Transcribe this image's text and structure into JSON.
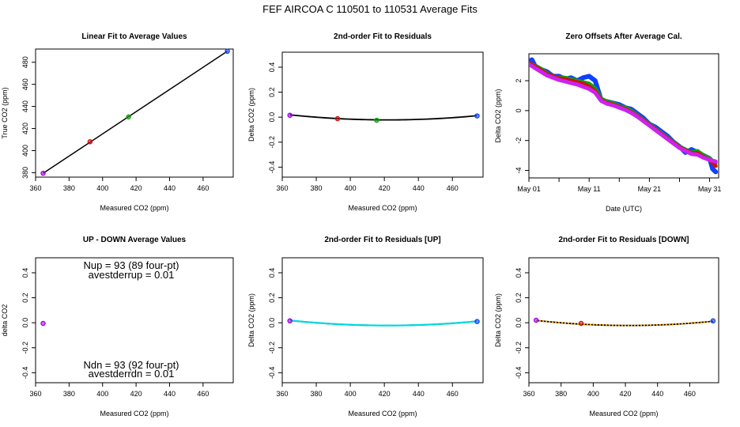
{
  "figure": {
    "title": "FEF   AIRCOA C   110501 to 110531   Average Fits"
  },
  "colors": {
    "axis": "#000000",
    "fit_line": "#000000",
    "purple": "#a000e0",
    "red": "#d01010",
    "green": "#10a010",
    "blue": "#1040ff",
    "magenta": "#cc22ee",
    "cyan": "#00d8e0",
    "orange": "#f0a000"
  },
  "chart_data": [
    {
      "id": "linear-fit",
      "type": "scatter",
      "title": "Linear Fit to Average Values",
      "xlabel": "Measured CO2 (ppm)",
      "ylabel": "True CO2 (ppm)",
      "xlim": [
        360,
        478
      ],
      "ylim": [
        376,
        492
      ],
      "xticks": [
        360,
        380,
        400,
        420,
        440,
        460
      ],
      "yticks": [
        380,
        400,
        420,
        440,
        460,
        480
      ],
      "xtick_labels": [
        "360",
        "380",
        "400",
        "420",
        "440",
        "460"
      ],
      "ytick_labels": [
        "380",
        "400",
        "420",
        "440",
        "460",
        "480"
      ],
      "fit_line": {
        "x": [
          364.5,
          474.5
        ],
        "y": [
          379.5,
          490
        ]
      },
      "points": [
        {
          "name": "std-1",
          "x": 364.5,
          "y": 379.5,
          "color": "purple"
        },
        {
          "name": "std-2",
          "x": 392.5,
          "y": 408,
          "color": "red"
        },
        {
          "name": "std-3",
          "x": 415.5,
          "y": 430.5,
          "color": "green"
        },
        {
          "name": "std-4",
          "x": 474.5,
          "y": 490,
          "color": "blue"
        }
      ]
    },
    {
      "id": "residuals",
      "type": "line",
      "title": "2nd-order Fit to Residuals",
      "xlabel": "Measured CO2 (ppm)",
      "ylabel": "Delta CO2 (ppm)",
      "xlim": [
        360,
        478
      ],
      "ylim": [
        -0.48,
        0.52
      ],
      "xticks": [
        360,
        380,
        400,
        420,
        440,
        460
      ],
      "yticks": [
        -0.4,
        -0.2,
        0.0,
        0.2,
        0.4
      ],
      "xtick_labels": [
        "360",
        "380",
        "400",
        "420",
        "440",
        "460"
      ],
      "ytick_labels": [
        "-0.4",
        "-0.2",
        "0.0",
        "0.2",
        "0.4"
      ],
      "curve": {
        "a": 1.23e-05,
        "c": -0.022,
        "x0": 422,
        "x_from": 364.5,
        "x_to": 474.5,
        "color": "fit_line"
      },
      "points": [
        {
          "name": "std-1",
          "x": 364.5,
          "y": 0.015,
          "color": "purple"
        },
        {
          "name": "std-2",
          "x": 392.5,
          "y": -0.012,
          "color": "red"
        },
        {
          "name": "std-3",
          "x": 415.5,
          "y": -0.025,
          "color": "green"
        },
        {
          "name": "std-4",
          "x": 474.5,
          "y": 0.01,
          "color": "blue"
        }
      ]
    },
    {
      "id": "zero-offsets",
      "type": "line",
      "title": "Zero Offsets After Average Cal.",
      "xlabel": "Date (UTC)",
      "ylabel": "Delta CO2 (ppm)",
      "xlim": [
        0,
        31.5
      ],
      "ylim": [
        -4.5,
        3.8
      ],
      "xticks": [
        0,
        5,
        10,
        15,
        20,
        25,
        30
      ],
      "xtick_labels": [
        "May 01",
        "",
        "May 11",
        "",
        "May 21",
        "",
        "May 31"
      ],
      "yticks": [
        -4,
        -2,
        0,
        2
      ],
      "ytick_labels": [
        "-4",
        "-2",
        "0",
        "2"
      ],
      "series": [
        {
          "name": "blue",
          "color": "blue",
          "width": 6,
          "x": [
            0,
            0.5,
            1,
            2,
            3,
            4,
            5,
            6,
            7,
            8,
            9,
            10,
            11,
            12,
            13,
            14,
            15,
            16,
            17,
            18,
            19,
            20,
            21,
            22,
            23,
            24,
            25,
            26,
            27,
            28,
            29,
            30,
            30.5,
            31
          ],
          "y": [
            3.3,
            3.4,
            3.0,
            2.75,
            2.6,
            2.3,
            2.3,
            2.1,
            2.2,
            2.0,
            2.2,
            2.3,
            2.0,
            0.7,
            0.6,
            0.5,
            0.4,
            0.2,
            0.1,
            -0.2,
            -0.5,
            -0.9,
            -1.1,
            -1.4,
            -1.7,
            -2.1,
            -2.4,
            -2.8,
            -2.6,
            -2.8,
            -3.0,
            -3.2,
            -3.9,
            -4.1
          ]
        },
        {
          "name": "green",
          "color": "green",
          "width": 5,
          "x": [
            0,
            1,
            2,
            3,
            4,
            5,
            6,
            7,
            8,
            9,
            10,
            11,
            12,
            13,
            14,
            15,
            16,
            17,
            18,
            19,
            20,
            21,
            22,
            23,
            24,
            25,
            26,
            27,
            28,
            29,
            30,
            31
          ],
          "y": [
            3.2,
            3.0,
            2.8,
            2.5,
            2.3,
            2.2,
            2.2,
            2.1,
            2.0,
            1.9,
            1.8,
            1.5,
            0.8,
            0.6,
            0.5,
            0.3,
            0.2,
            0.0,
            -0.3,
            -0.6,
            -0.9,
            -1.2,
            -1.5,
            -1.8,
            -2.1,
            -2.4,
            -2.6,
            -2.8,
            -2.7,
            -3.0,
            -3.2,
            -3.5
          ]
        },
        {
          "name": "red",
          "color": "red",
          "width": 5,
          "x": [
            0,
            1,
            2,
            3,
            4,
            5,
            6,
            7,
            8,
            9,
            10,
            11,
            12,
            13,
            14,
            15,
            16,
            17,
            18,
            19,
            20,
            21,
            22,
            23,
            24,
            25,
            26,
            27,
            28,
            29,
            30,
            31
          ],
          "y": [
            3.2,
            2.95,
            2.7,
            2.45,
            2.3,
            2.15,
            2.1,
            2.0,
            1.9,
            1.8,
            1.6,
            1.3,
            0.7,
            0.5,
            0.4,
            0.25,
            0.1,
            -0.1,
            -0.35,
            -0.65,
            -0.95,
            -1.25,
            -1.55,
            -1.85,
            -2.15,
            -2.45,
            -2.65,
            -2.85,
            -2.85,
            -3.1,
            -3.3,
            -3.7
          ]
        },
        {
          "name": "magenta",
          "color": "magenta",
          "width": 5,
          "x": [
            0,
            1,
            2,
            3,
            4,
            5,
            6,
            7,
            8,
            9,
            10,
            11,
            12,
            13,
            14,
            15,
            16,
            17,
            18,
            19,
            20,
            21,
            22,
            23,
            24,
            25,
            26,
            27,
            28,
            29,
            30,
            31
          ],
          "y": [
            3.1,
            2.85,
            2.6,
            2.35,
            2.2,
            2.05,
            1.95,
            1.85,
            1.75,
            1.6,
            1.45,
            1.2,
            0.65,
            0.45,
            0.35,
            0.2,
            0.05,
            -0.15,
            -0.4,
            -0.7,
            -1.0,
            -1.3,
            -1.6,
            -1.9,
            -2.2,
            -2.5,
            -2.7,
            -2.9,
            -2.95,
            -3.15,
            -3.3,
            -3.4
          ]
        }
      ]
    },
    {
      "id": "up-down",
      "type": "scatter",
      "title": "UP - DOWN Average Values",
      "xlabel": "Measured CO2 (ppm)",
      "ylabel": "delta CO2",
      "xlim": [
        360,
        478
      ],
      "ylim": [
        -0.48,
        0.52
      ],
      "xticks": [
        360,
        380,
        400,
        420,
        440,
        460
      ],
      "yticks": [
        -0.4,
        -0.2,
        0.0,
        0.2,
        0.4
      ],
      "xtick_labels": [
        "360",
        "380",
        "400",
        "420",
        "440",
        "460"
      ],
      "ytick_labels": [
        "-0.4",
        "-0.2",
        "0.0",
        "0.2",
        "0.4"
      ],
      "points": [
        {
          "name": "updown-1",
          "x": 364.5,
          "y": -0.005,
          "color": "purple"
        }
      ],
      "annotations": {
        "nup": "Nup = 93 (89 four-pt)",
        "avestderrup": "avestderrup =  0.01",
        "ndn": "Ndn = 93 (92 four-pt)",
        "avestderrdn": "avestderrdn =  0.01"
      }
    },
    {
      "id": "residuals-up",
      "type": "line",
      "title": "2nd-order Fit to Residuals [UP]",
      "xlabel": "Measured CO2 (ppm)",
      "ylabel": "Delta CO2 (ppm)",
      "xlim": [
        360,
        478
      ],
      "ylim": [
        -0.48,
        0.52
      ],
      "xticks": [
        360,
        380,
        400,
        420,
        440,
        460
      ],
      "yticks": [
        -0.4,
        -0.2,
        0.0,
        0.2,
        0.4
      ],
      "xtick_labels": [
        "360",
        "380",
        "400",
        "420",
        "440",
        "460"
      ],
      "ytick_labels": [
        "-0.4",
        "-0.2",
        "0.0",
        "0.2",
        "0.4"
      ],
      "curve": {
        "a": 1.23e-05,
        "c": -0.022,
        "x0": 422,
        "x_from": 364.5,
        "x_to": 474.5,
        "color": "fit_line",
        "overlay_color": "cyan"
      },
      "points": [
        {
          "name": "std-1",
          "x": 364.5,
          "y": 0.015,
          "color": "purple"
        },
        {
          "name": "std-4",
          "x": 474.5,
          "y": 0.01,
          "color": "blue"
        }
      ]
    },
    {
      "id": "residuals-down",
      "type": "line",
      "title": "2nd-order Fit to Residuals [DOWN]",
      "xlabel": "Measured CO2 (ppm)",
      "ylabel": "Delta CO2 (ppm)",
      "xlim": [
        360,
        478
      ],
      "ylim": [
        -0.48,
        0.52
      ],
      "xticks": [
        360,
        380,
        400,
        420,
        440,
        460
      ],
      "yticks": [
        -0.4,
        -0.2,
        0.0,
        0.2,
        0.4
      ],
      "xtick_labels": [
        "360",
        "380",
        "400",
        "420",
        "440",
        "460"
      ],
      "ytick_labels": [
        "-0.4",
        "-0.2",
        "0.0",
        "0.2",
        "0.4"
      ],
      "curve": {
        "a": 1.23e-05,
        "c": -0.022,
        "x0": 422,
        "x_from": 364.5,
        "x_to": 474.5,
        "color": "fit_line",
        "overlay_color": "orange",
        "dashed": true
      },
      "points": [
        {
          "name": "std-1",
          "x": 364.5,
          "y": 0.02,
          "color": "purple"
        },
        {
          "name": "std-2",
          "x": 392.5,
          "y": -0.005,
          "color": "red"
        },
        {
          "name": "std-4",
          "x": 474.5,
          "y": 0.015,
          "color": "blue"
        }
      ]
    }
  ]
}
